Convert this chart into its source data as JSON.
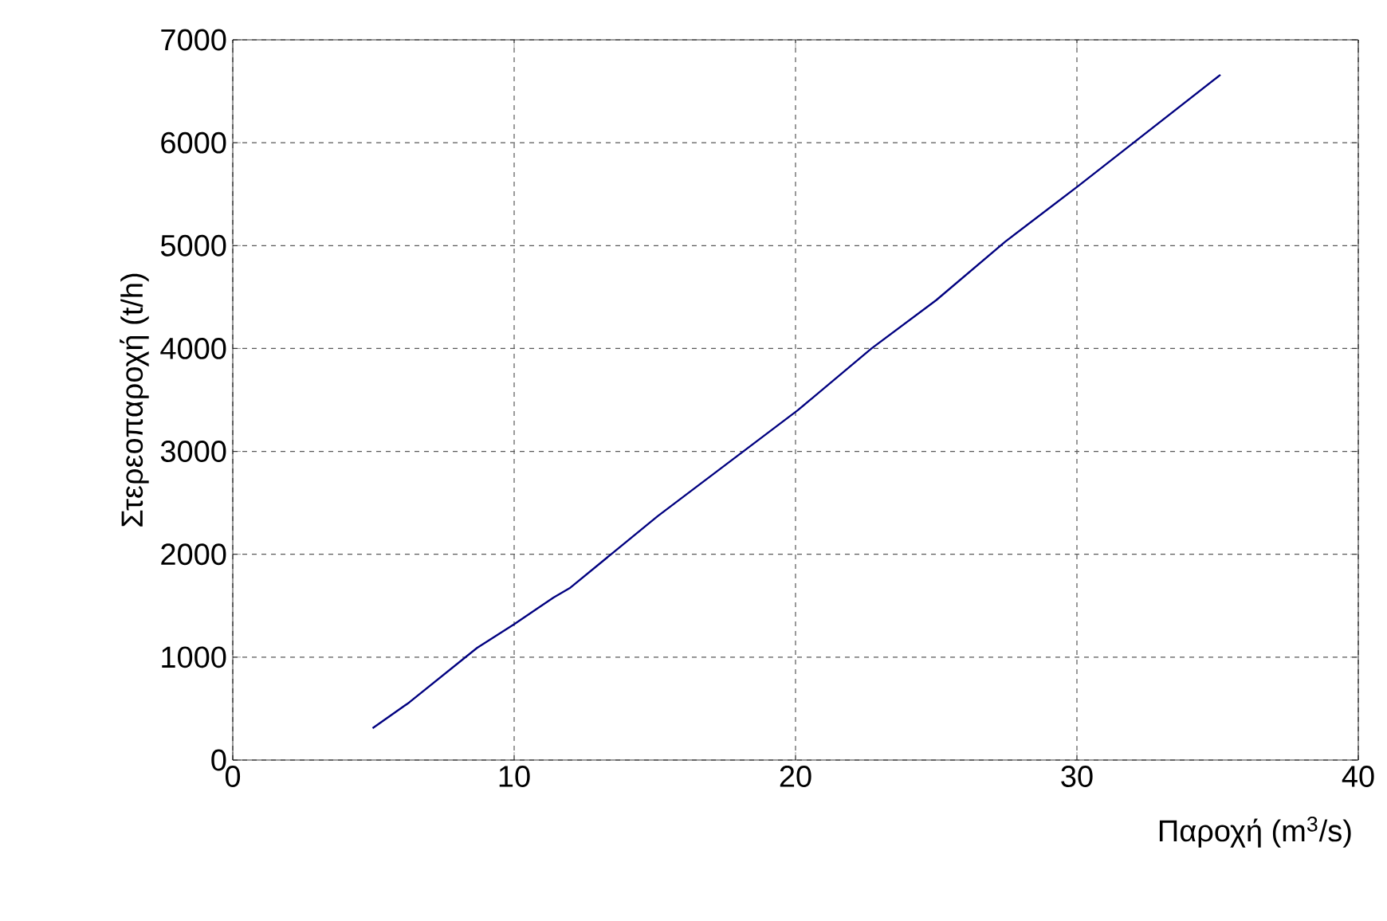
{
  "chart_data": {
    "type": "line",
    "xlabel": "Παροχή (m$^{3}$/s)",
    "ylabel": "Στερεοπαροχή (t/h)",
    "series": [
      {
        "color": "#000080",
        "x": [
          4.97,
          6.27,
          8.68,
          10.0,
          11.4,
          11.97,
          15.1,
          20.08,
          22.7,
          25.0,
          27.46,
          30.05,
          35.1
        ],
        "values": [
          310,
          560,
          1090,
          1320,
          1580,
          1670,
          2370,
          3400,
          4000,
          4470,
          5040,
          5580,
          6660
        ]
      }
    ],
    "xlim": [
      0,
      40
    ],
    "ylim": [
      0,
      7000
    ],
    "xticks": [
      0,
      10,
      20,
      30,
      40
    ],
    "yticks": [
      0,
      1000,
      2000,
      3000,
      4000,
      5000,
      6000,
      7000
    ],
    "grid": true,
    "marker": "none",
    "line_style": "solid"
  }
}
